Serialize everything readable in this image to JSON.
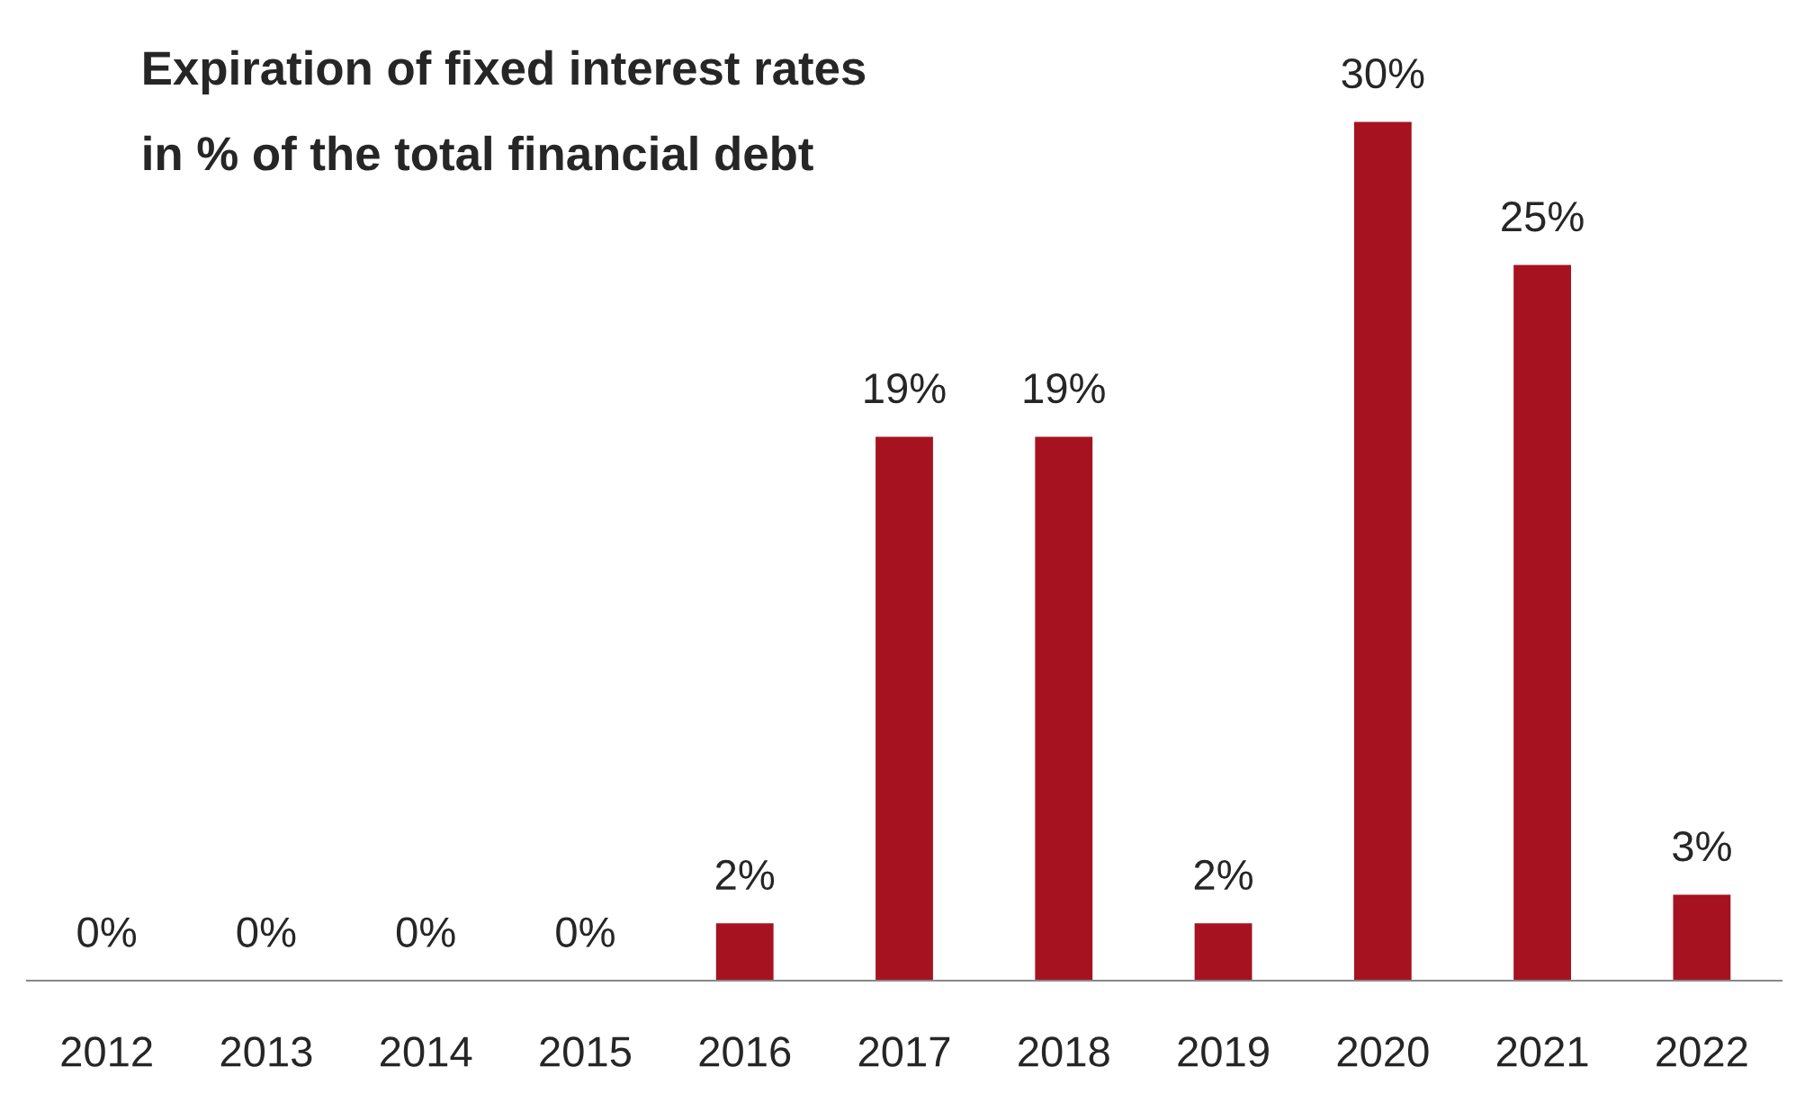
{
  "chart_data": {
    "type": "bar",
    "title": "Expiration of fixed interest rates\nin % of the total financial debt",
    "categories": [
      "2012",
      "2013",
      "2014",
      "2015",
      "2016",
      "2017",
      "2018",
      "2019",
      "2020",
      "2021",
      "2022"
    ],
    "values": [
      0,
      0,
      0,
      0,
      2,
      19,
      19,
      2,
      30,
      25,
      3
    ],
    "value_labels": [
      "0%",
      "0%",
      "0%",
      "0%",
      "2%",
      "19%",
      "19%",
      "2%",
      "30%",
      "25%",
      "3%"
    ],
    "color": "#a6121f",
    "grid": false,
    "legend": false
  }
}
